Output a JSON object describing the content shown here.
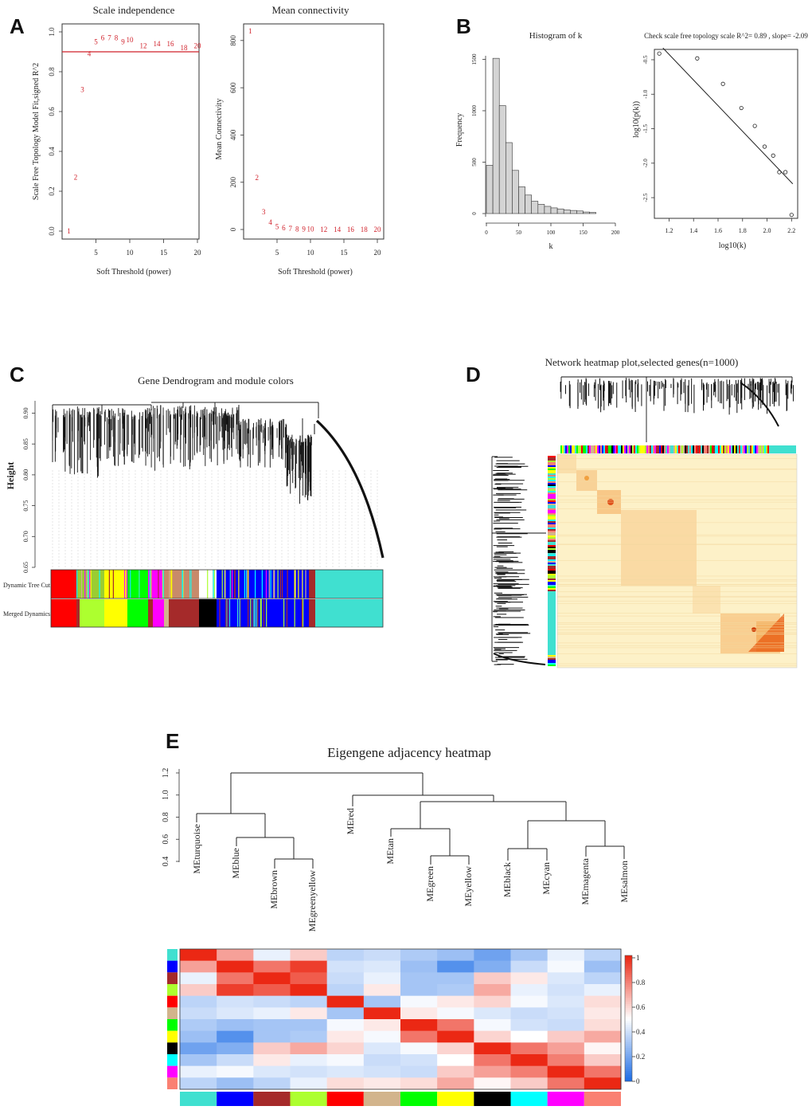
{
  "panel_labels": [
    "A",
    "B",
    "C",
    "D",
    "E"
  ],
  "chart_data": [
    {
      "id": "A1",
      "type": "scatter",
      "title": "Scale independence",
      "xlabel": "Soft Threshold (power)",
      "ylabel": "Scale Free Topology Model Fit,signed R^2",
      "xlim": [
        0,
        20
      ],
      "ylim": [
        0,
        1.0
      ],
      "xticks": [
        "5",
        "10",
        "15",
        "20"
      ],
      "yticks": [
        "0.0",
        "0.2",
        "0.4",
        "0.6",
        "0.8",
        "1.0"
      ],
      "threshold_line": 0.9,
      "x": [
        1,
        2,
        3,
        4,
        5,
        6,
        7,
        8,
        9,
        10,
        12,
        14,
        16,
        18,
        20
      ],
      "y": [
        0.0,
        0.27,
        0.71,
        0.89,
        0.95,
        0.97,
        0.97,
        0.97,
        0.95,
        0.96,
        0.93,
        0.94,
        0.94,
        0.92,
        0.93
      ],
      "labels": [
        "1",
        "2",
        "3",
        "4",
        "5",
        "6",
        "7",
        "8",
        "9",
        "10",
        "12",
        "14",
        "16",
        "18",
        "20"
      ]
    },
    {
      "id": "A2",
      "type": "scatter",
      "title": "Mean connectivity",
      "xlabel": "Soft Threshold (power)",
      "ylabel": "Mean Connectivity",
      "xlim": [
        0,
        20
      ],
      "ylim": [
        0,
        850
      ],
      "xticks": [
        "5",
        "10",
        "15",
        "20"
      ],
      "yticks": [
        "0",
        "200",
        "400",
        "600",
        "800"
      ],
      "x": [
        1,
        2,
        3,
        4,
        5,
        6,
        7,
        8,
        9,
        10,
        12,
        14,
        16,
        18,
        20
      ],
      "y": [
        840,
        220,
        75,
        30,
        12,
        6,
        3,
        2,
        1,
        1,
        0,
        0,
        0,
        0,
        0
      ],
      "labels": [
        "1",
        "2",
        "3",
        "4",
        "5",
        "6",
        "7",
        "8",
        "9",
        "10",
        "12",
        "14",
        "16",
        "18",
        "20"
      ]
    },
    {
      "id": "B1",
      "type": "bar",
      "title": "Histogram of k",
      "xlabel": "k",
      "ylabel": "Frequency",
      "xlim": [
        0,
        200
      ],
      "ylim": [
        0,
        1550
      ],
      "xticks": [
        "0",
        "50",
        "100",
        "150",
        "200"
      ],
      "yticks": [
        "0",
        "500",
        "1000",
        "1500"
      ],
      "bin_width": 10,
      "bin_starts": [
        0,
        10,
        20,
        30,
        40,
        50,
        60,
        70,
        80,
        90,
        100,
        110,
        120,
        130,
        140,
        150,
        160
      ],
      "values": [
        470,
        1510,
        1050,
        690,
        420,
        260,
        180,
        120,
        90,
        70,
        55,
        45,
        35,
        30,
        25,
        15,
        10
      ]
    },
    {
      "id": "B2",
      "type": "scatter",
      "title": "Check scale free topology  scale R^2= 0.89 , slope= -2.09",
      "xlabel": "log10(k)",
      "ylabel": "log10(p(k))",
      "xlim": [
        1.08,
        2.25
      ],
      "ylim": [
        -2.8,
        -0.35
      ],
      "xticks": [
        "1.2",
        "1.4",
        "1.6",
        "1.8",
        "2.0",
        "2.2"
      ],
      "yticks": [
        "-0.5",
        "-1.0",
        "-1.5",
        "-2.0",
        "-2.5"
      ],
      "x": [
        1.12,
        1.43,
        1.64,
        1.79,
        1.9,
        1.98,
        2.05,
        2.1,
        2.15,
        2.2
      ],
      "y": [
        -0.41,
        -0.48,
        -0.85,
        -1.2,
        -1.46,
        -1.76,
        -1.89,
        -2.13,
        -2.13,
        -2.75
      ],
      "fit_line": [
        [
          1.15,
          -0.33
        ],
        [
          2.21,
          -2.3
        ]
      ]
    },
    {
      "id": "E_scale",
      "type": "heatmap",
      "title": "Eigengene adjacency heatmap",
      "colorbar_ticks": [
        "0",
        "0.2",
        "0.4",
        "0.6",
        "0.8",
        "1"
      ],
      "dendrogram_yticks": [
        "0.4",
        "0.6",
        "0.8",
        "1.0",
        "1.2"
      ]
    }
  ],
  "panel_c": {
    "title": "Gene Dendrogram and module colors",
    "ylabel": "Height",
    "yticks": [
      "0.65",
      "0.70",
      "0.75",
      "0.80",
      "0.85",
      "0.90"
    ],
    "row_labels": [
      "Dynamic Tree Cut",
      "Merged Dynamics"
    ]
  },
  "panel_d": {
    "title": "Network heatmap plot,selected genes(n=1000)"
  },
  "panel_e": {
    "title": "Eigengene adjacency heatmap",
    "modules": [
      "MEturquoise",
      "MEblue",
      "MEbrown",
      "MEgreenyellow",
      "MEred",
      "MEtan",
      "MEgreen",
      "MEyellow",
      "MEblack",
      "MEcyan",
      "MEmagenta",
      "MEsalmon"
    ],
    "module_colors": [
      "#40e0d0",
      "#0000ff",
      "#a52a2a",
      "#adff2f",
      "#ff0000",
      "#d2b48c",
      "#00ff00",
      "#ffff00",
      "#000000",
      "#00ffff",
      "#ff00ff",
      "#fa8072"
    ],
    "matrix": [
      [
        1.0,
        0.72,
        0.45,
        0.62,
        0.35,
        0.38,
        0.32,
        0.28,
        0.18,
        0.3,
        0.45,
        0.35
      ],
      [
        0.72,
        1.0,
        0.82,
        0.95,
        0.4,
        0.42,
        0.28,
        0.12,
        0.22,
        0.38,
        0.48,
        0.28
      ],
      [
        0.45,
        0.82,
        1.0,
        0.88,
        0.38,
        0.45,
        0.3,
        0.3,
        0.62,
        0.55,
        0.42,
        0.35
      ],
      [
        0.62,
        0.95,
        0.88,
        1.0,
        0.35,
        0.55,
        0.3,
        0.32,
        0.7,
        0.45,
        0.4,
        0.45
      ],
      [
        0.35,
        0.4,
        0.38,
        0.35,
        1.0,
        0.3,
        0.48,
        0.55,
        0.6,
        0.48,
        0.42,
        0.58
      ],
      [
        0.38,
        0.42,
        0.45,
        0.55,
        0.3,
        1.0,
        0.55,
        0.48,
        0.42,
        0.38,
        0.4,
        0.55
      ],
      [
        0.32,
        0.28,
        0.3,
        0.3,
        0.48,
        0.55,
        1.0,
        0.82,
        0.48,
        0.4,
        0.38,
        0.58
      ],
      [
        0.28,
        0.12,
        0.3,
        0.32,
        0.55,
        0.48,
        0.82,
        1.0,
        0.6,
        0.5,
        0.62,
        0.7
      ],
      [
        0.18,
        0.22,
        0.62,
        0.7,
        0.6,
        0.42,
        0.48,
        0.6,
        1.0,
        0.82,
        0.72,
        0.52
      ],
      [
        0.3,
        0.38,
        0.55,
        0.45,
        0.48,
        0.38,
        0.4,
        0.5,
        0.82,
        1.0,
        0.8,
        0.62
      ],
      [
        0.45,
        0.48,
        0.42,
        0.4,
        0.42,
        0.4,
        0.38,
        0.62,
        0.72,
        0.8,
        1.0,
        0.82
      ],
      [
        0.35,
        0.28,
        0.35,
        0.45,
        0.58,
        0.55,
        0.58,
        0.7,
        0.52,
        0.62,
        0.82,
        1.0
      ]
    ]
  }
}
